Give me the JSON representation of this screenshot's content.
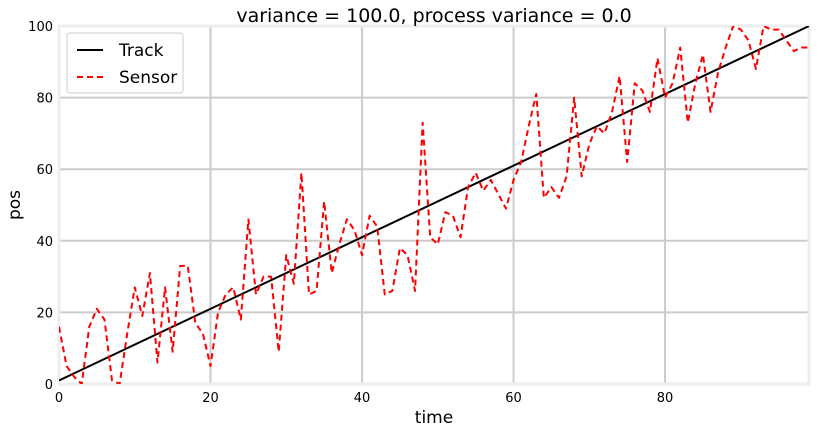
{
  "chart_data": {
    "type": "line",
    "title": "variance = 100.0, process variance = 0.0",
    "xlabel": "time",
    "ylabel": "pos",
    "xlim": [
      0,
      99
    ],
    "ylim": [
      0,
      100
    ],
    "xticks": [
      0,
      20,
      40,
      60,
      80
    ],
    "yticks": [
      0,
      20,
      40,
      60,
      80,
      100
    ],
    "grid": true,
    "legend_position": "top-left",
    "series": [
      {
        "name": "Track",
        "color": "#000000",
        "style": "solid",
        "x": [
          0,
          99
        ],
        "y": [
          1,
          100
        ]
      },
      {
        "name": "Sensor",
        "color": "#ff0000",
        "style": "dashed",
        "x": [
          0,
          1,
          2,
          3,
          4,
          5,
          6,
          7,
          8,
          9,
          10,
          11,
          12,
          13,
          14,
          15,
          16,
          17,
          18,
          19,
          20,
          21,
          22,
          23,
          24,
          25,
          26,
          27,
          28,
          29,
          30,
          31,
          32,
          33,
          34,
          35,
          36,
          37,
          38,
          39,
          40,
          41,
          42,
          43,
          44,
          45,
          46,
          47,
          48,
          49,
          50,
          51,
          52,
          53,
          54,
          55,
          56,
          57,
          58,
          59,
          60,
          61,
          62,
          63,
          64,
          65,
          66,
          67,
          68,
          69,
          70,
          71,
          72,
          73,
          74,
          75,
          76,
          77,
          78,
          79,
          80,
          81,
          82,
          83,
          84,
          85,
          86,
          87,
          88,
          89,
          90,
          91,
          92,
          93,
          94,
          95,
          96,
          97,
          98,
          99
        ],
        "y": [
          16,
          5,
          2,
          0,
          16,
          21,
          18,
          1,
          0,
          14,
          27,
          19,
          31,
          6,
          27,
          9,
          33,
          33,
          17,
          14,
          5,
          20,
          25,
          27,
          18,
          46,
          25,
          30,
          30,
          9,
          36,
          28,
          59,
          25,
          26,
          51,
          31,
          39,
          46,
          43,
          36,
          47,
          44,
          25,
          26,
          38,
          36,
          26,
          73,
          41,
          39,
          48,
          47,
          41,
          55,
          59,
          54,
          57,
          53,
          49,
          57,
          62,
          72,
          81,
          52,
          55,
          52,
          58,
          80,
          58,
          67,
          72,
          70,
          76,
          86,
          62,
          84,
          82,
          76,
          91,
          80,
          84,
          94,
          73,
          84,
          92,
          76,
          87,
          94,
          100,
          99,
          96,
          88,
          100,
          99,
          99,
          96,
          93,
          94,
          94
        ]
      }
    ]
  }
}
